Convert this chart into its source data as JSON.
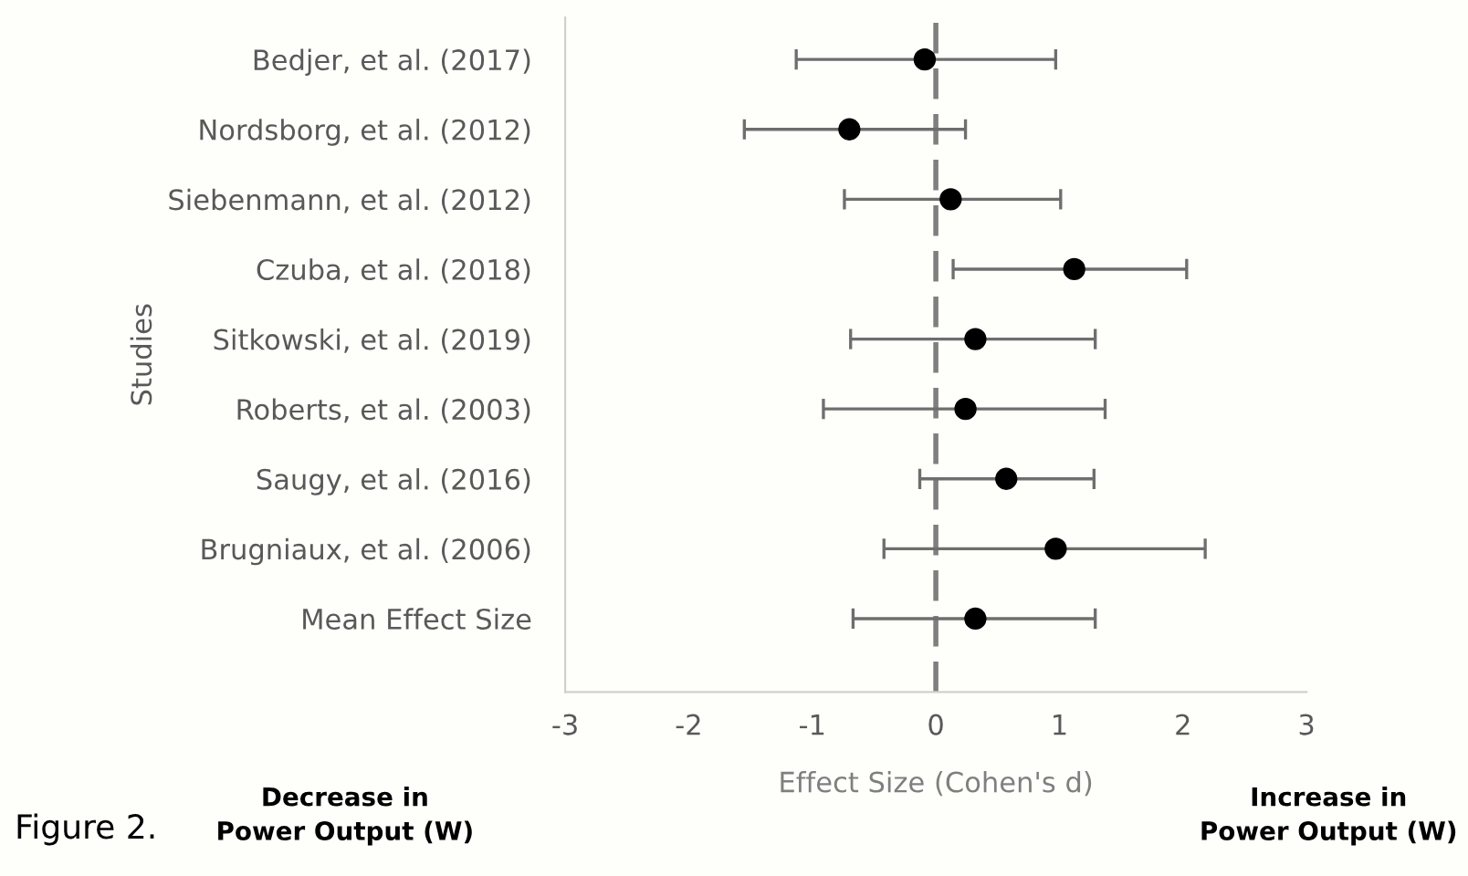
{
  "chart_data": {
    "type": "scatter",
    "orientation": "horizontal",
    "categories": [
      "Bedjer, et al. (2017)",
      "Nordsborg, et al. (2012)",
      "Siebenmann, et al. (2012)",
      "Czuba, et al. (2018)",
      "Sitkowski, et al. (2019)",
      "Roberts, et al. (2003)",
      "Saugy, et al. (2016)",
      "Brugniaux, et al. (2006)",
      "Mean Effect Size"
    ],
    "values": [
      -0.09,
      -0.7,
      0.12,
      1.12,
      0.32,
      0.24,
      0.57,
      0.97,
      0.32
    ],
    "errors": [
      [
        -1.13,
        0.97
      ],
      [
        -1.55,
        0.24
      ],
      [
        -0.74,
        1.01
      ],
      [
        0.14,
        2.03
      ],
      [
        -0.69,
        1.29
      ],
      [
        -0.91,
        1.37
      ],
      [
        -0.13,
        1.28
      ],
      [
        -0.42,
        2.18
      ],
      [
        -0.67,
        1.29
      ]
    ],
    "color": "#000000",
    "marker": "circle",
    "xlim": [
      -3,
      3
    ],
    "xticks": [
      -3,
      -2,
      -1,
      0,
      1,
      2,
      3
    ],
    "xlabel": "Effect Size (Cohen's d)",
    "ylabel": "Studies",
    "ref_lines": [
      {
        "axis": "x",
        "value": 0,
        "color": "#7f7f7f",
        "line_style": "dashed"
      }
    ],
    "annotations": [
      "Decrease in\nPower Output (W)",
      "Increase in\nPower Output (W)",
      "Figure 2."
    ],
    "grid": false,
    "legend": false
  }
}
